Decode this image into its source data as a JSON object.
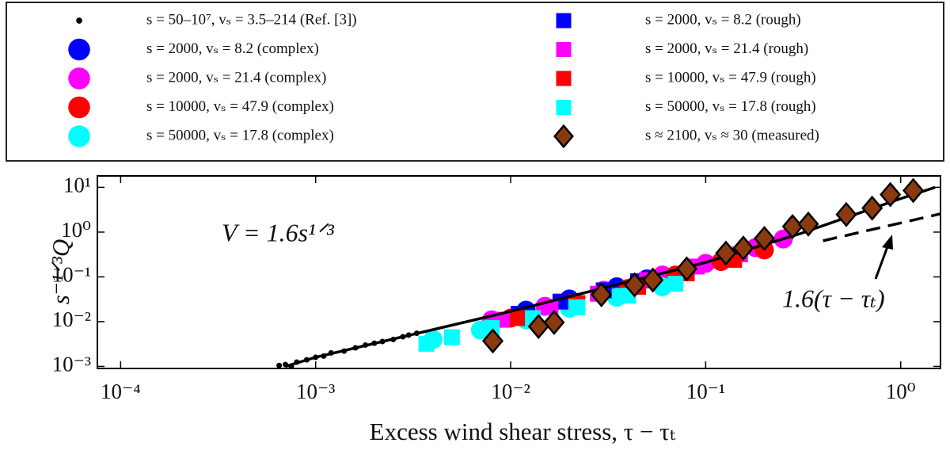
{
  "chart_data": {
    "type": "scatter",
    "x_label": "Excess wind shear stress, τ − τₜ",
    "y_label": "s⁻¹ᐟ³Q",
    "log_x": true,
    "log_y": true,
    "xlim": [
      7.6e-05,
      1.6
    ],
    "ylim": [
      0.0009,
      18
    ],
    "xticks": [
      {
        "value": 0.0001,
        "label": "10⁻⁴"
      },
      {
        "value": 0.001,
        "label": "10⁻³"
      },
      {
        "value": 0.01,
        "label": "10⁻²"
      },
      {
        "value": 0.1,
        "label": "10⁻¹"
      },
      {
        "value": 1,
        "label": "10⁰"
      }
    ],
    "yticks": [
      {
        "value": 0.001,
        "label": "10⁻³"
      },
      {
        "value": 0.01,
        "label": "10⁻²"
      },
      {
        "value": 0.1,
        "label": "10⁻¹"
      },
      {
        "value": 1,
        "label": "10⁰"
      },
      {
        "value": 10,
        "label": "10¹"
      }
    ],
    "annotations": [
      "V = 1.6s¹ᐟ³",
      "1.6(τ − τₜ)"
    ],
    "fit_lines": [
      {
        "x": [
          0.0007,
          0.001,
          0.01,
          0.1,
          0.3,
          1,
          1.5
        ],
        "y": [
          0.001,
          0.0016,
          0.017,
          0.21,
          0.9,
          5.6,
          10
        ],
        "dashed": false
      },
      {
        "x": [
          0.4,
          1.6
        ],
        "y": [
          0.64,
          2.56
        ],
        "dashed": true
      }
    ],
    "series": [
      {
        "name": "s = 50–10⁷, vₛ = 3.5–214 (Ref. [3])",
        "marker": "dot",
        "color": "#000000",
        "x": [
          0.00065,
          0.0007,
          0.00075,
          0.0008,
          0.0009,
          0.001,
          0.0011,
          0.0012,
          0.0014,
          0.0016,
          0.0018,
          0.002,
          0.0022,
          0.0025,
          0.0028,
          0.003,
          0.0033
        ],
        "values": [
          0.00105,
          0.0011,
          0.001,
          0.00125,
          0.0014,
          0.0016,
          0.0017,
          0.002,
          0.0022,
          0.0026,
          0.003,
          0.0033,
          0.0036,
          0.004,
          0.0046,
          0.005,
          0.0055
        ]
      },
      {
        "name": "s = 2000, vₛ = 8.2 (complex)",
        "marker": "circle",
        "color": "#0000ff",
        "x": [
          0.012,
          0.02,
          0.035,
          0.05
        ],
        "values": [
          0.018,
          0.032,
          0.06,
          0.09
        ]
      },
      {
        "name": "s = 2000, vₛ = 21.4 (complex)",
        "marker": "circle",
        "color": "#ff00ff",
        "x": [
          0.008,
          0.015,
          0.03,
          0.06,
          0.1,
          0.18,
          0.25
        ],
        "values": [
          0.011,
          0.022,
          0.05,
          0.11,
          0.2,
          0.45,
          0.7
        ]
      },
      {
        "name": "s = 10000, vₛ = 47.9 (complex)",
        "marker": "circle",
        "color": "#ff0000",
        "x": [
          0.01,
          0.02,
          0.04,
          0.07,
          0.12,
          0.2
        ],
        "values": [
          0.012,
          0.025,
          0.055,
          0.11,
          0.22,
          0.4
        ]
      },
      {
        "name": "s = 50000, vₛ = 17.8 (complex)",
        "marker": "circle",
        "color": "#00ffff",
        "x": [
          0.004,
          0.007,
          0.012,
          0.02,
          0.035,
          0.06
        ],
        "values": [
          0.004,
          0.0065,
          0.011,
          0.02,
          0.035,
          0.06
        ]
      },
      {
        "name": "s = 2000, vₛ = 8.2 (rough)",
        "marker": "square",
        "color": "#0000ff",
        "x": [
          0.011,
          0.018,
          0.03,
          0.045
        ],
        "values": [
          0.015,
          0.028,
          0.05,
          0.08
        ]
      },
      {
        "name": "s = 2000, vₛ = 21.4 (rough)",
        "marker": "square",
        "color": "#ff00ff",
        "x": [
          0.009,
          0.016,
          0.028,
          0.05,
          0.09,
          0.15
        ],
        "values": [
          0.011,
          0.021,
          0.042,
          0.085,
          0.17,
          0.32
        ]
      },
      {
        "name": "s = 10000, vₛ = 47.9 (rough)",
        "marker": "square",
        "color": "#ff0000",
        "x": [
          0.011,
          0.022,
          0.045,
          0.08,
          0.14
        ],
        "values": [
          0.012,
          0.026,
          0.06,
          0.12,
          0.24
        ]
      },
      {
        "name": "s = 50000, vₛ = 17.8 (rough)",
        "marker": "square",
        "color": "#00ffff",
        "x": [
          0.0037,
          0.005,
          0.008,
          0.013,
          0.022,
          0.04,
          0.07
        ],
        "values": [
          0.0032,
          0.0045,
          0.0072,
          0.012,
          0.021,
          0.038,
          0.07
        ]
      },
      {
        "name": "s ≈ 2100, vₛ ≈ 30 (measured)",
        "marker": "diamond",
        "color": "#8b3a0f",
        "x": [
          0.0081,
          0.0139,
          0.0167,
          0.0292,
          0.0432,
          0.0536,
          0.08,
          0.127,
          0.156,
          0.2,
          0.279,
          0.336,
          0.526,
          0.714,
          0.885,
          1.16
        ],
        "values": [
          0.0037,
          0.0078,
          0.0096,
          0.04,
          0.066,
          0.085,
          0.151,
          0.34,
          0.44,
          0.72,
          1.33,
          1.51,
          2.47,
          3.43,
          6.9,
          8.5
        ]
      }
    ]
  }
}
